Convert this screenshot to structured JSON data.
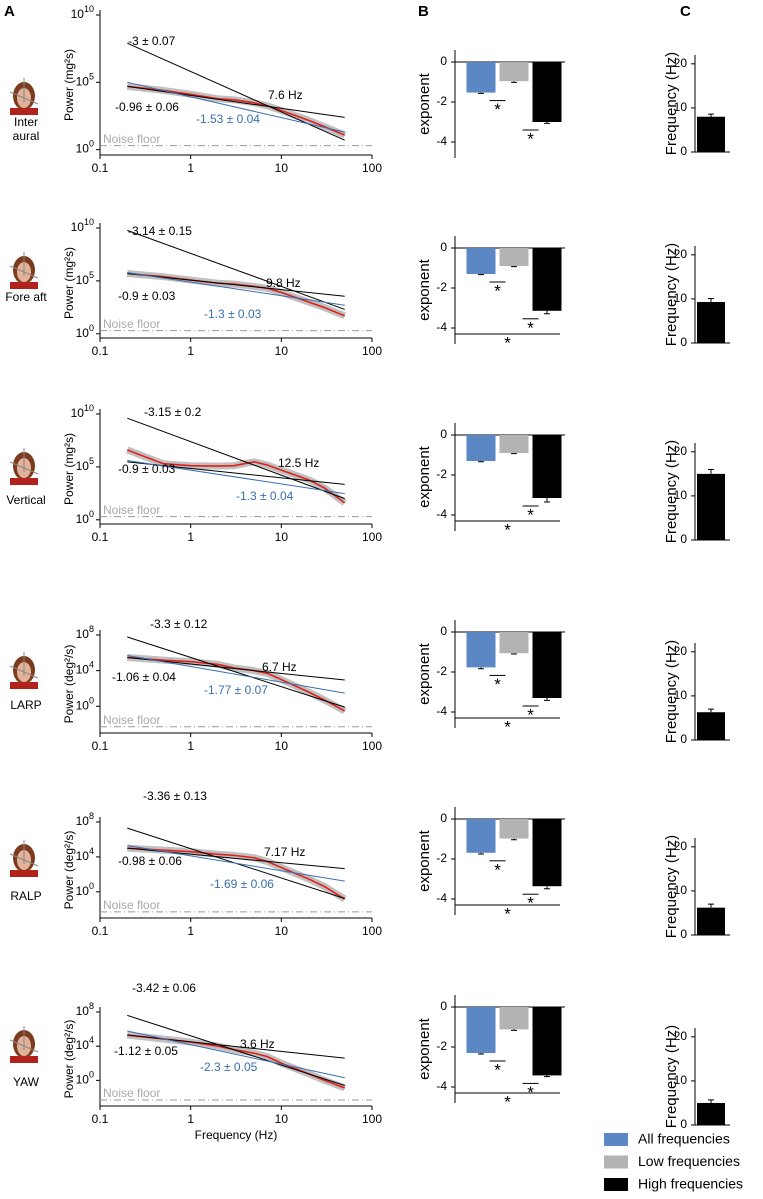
{
  "panels": [
    "A",
    "B",
    "C"
  ],
  "legend": [
    {
      "name": "All frequencies",
      "color": "#5b87c5"
    },
    {
      "name": "Low frequencies",
      "color": "#b3b3b3"
    },
    {
      "name": "High frequencies",
      "color": "#000000"
    }
  ],
  "chart_data": [
    {
      "type": "line",
      "label": "Inter aural",
      "ylabel": "Power (mg²s)",
      "log_x": true,
      "log_y": true,
      "xlim": [
        0.1,
        100
      ],
      "xticks": [
        0.1,
        1,
        10,
        100
      ],
      "ylim": [
        0.4,
        10000000000.0
      ],
      "yticks": [
        {
          "value": 1,
          "label": "10",
          "exponent": "0"
        },
        {
          "value": 100000.0,
          "label": "10",
          "exponent": "5"
        },
        {
          "value": 10000000000.0,
          "label": "10",
          "exponent": "10"
        }
      ],
      "noise_floor": {
        "label": "Noise floor",
        "value": 2
      },
      "series": [
        {
          "color": "#e0201b",
          "band_color": "#b5b5b5",
          "x": [
            0.2,
            0.5,
            1,
            2,
            3,
            5,
            7,
            10,
            20,
            30,
            50
          ],
          "values": [
            50000.0,
            25000.0,
            13000.0,
            6000.0,
            5000.0,
            3000.0,
            1800.0,
            800.0,
            150.0,
            50.0,
            12.0
          ]
        },
        {
          "color": "#000000",
          "x": [
            0.2,
            50
          ],
          "values": [
            50000.0,
            250.0
          ]
        },
        {
          "color": "#000000",
          "x": [
            0.2,
            50
          ],
          "values": [
            80000000.0,
            5
          ]
        },
        {
          "color": "#3a6fb0",
          "x": [
            0.2,
            50
          ],
          "values": [
            100000.0,
            20.0
          ]
        }
      ],
      "annotations": [
        {
          "text": "-3 ± 0.07",
          "color": "#000000"
        },
        {
          "text": "7.6 Hz",
          "color": "#000000"
        },
        {
          "text": "-0.96 ± 0.06",
          "color": "#000000"
        },
        {
          "text": "-1.53 ± 0.04",
          "color": "#3a6fb0"
        }
      ]
    },
    {
      "type": "bar",
      "ylabel": "exponent",
      "ylim": [
        -4.8,
        0.6
      ],
      "yticks": [
        0,
        -2,
        -4
      ],
      "values": [
        -1.53,
        -0.96,
        -3
      ],
      "errors": [
        0.04,
        0.06,
        0.07
      ],
      "significance": [
        {
          "bars": [
            0,
            1
          ],
          "label": "*"
        },
        {
          "bars": [
            1,
            2
          ],
          "label": "*"
        }
      ]
    },
    {
      "type": "bar",
      "ylabel": "Frequency (Hz)",
      "ylim": [
        0,
        22
      ],
      "yticks": [
        0,
        10,
        20
      ],
      "values": [
        8
      ],
      "errors": [
        0.6
      ],
      "color": "#000000"
    },
    {
      "type": "line",
      "label": "Fore aft",
      "ylabel": "Power (mg²s)",
      "log_x": true,
      "log_y": true,
      "xlim": [
        0.1,
        100
      ],
      "xticks": [
        0.1,
        1,
        10,
        100
      ],
      "ylim": [
        0.4,
        10000000000.0
      ],
      "yticks": [
        {
          "value": 1,
          "label": "10",
          "exponent": "0"
        },
        {
          "value": 100000.0,
          "label": "10",
          "exponent": "5"
        },
        {
          "value": 10000000000.0,
          "label": "10",
          "exponent": "10"
        }
      ],
      "noise_floor": {
        "label": "Noise floor",
        "value": 2
      },
      "series": [
        {
          "color": "#e0201b",
          "band_color": "#b5b5b5",
          "x": [
            0.2,
            0.5,
            1,
            2,
            3,
            5,
            7,
            10,
            20,
            30,
            50
          ],
          "values": [
            500000.0,
            250000.0,
            120000.0,
            60000.0,
            50000.0,
            30000.0,
            20000.0,
            8000.0,
            1000.0,
            300.0,
            50.0
          ]
        },
        {
          "color": "#000000",
          "x": [
            0.2,
            50
          ],
          "values": [
            500000.0,
            3500.0
          ]
        },
        {
          "color": "#000000",
          "x": [
            0.2,
            50
          ],
          "values": [
            6000000000.0,
            200.0
          ]
        },
        {
          "color": "#3a6fb0",
          "x": [
            0.2,
            50
          ],
          "values": [
            600000.0,
            500.0
          ]
        }
      ],
      "annotations": [
        {
          "text": "-3.14 ± 0.15",
          "color": "#000000"
        },
        {
          "text": "9.8 Hz",
          "color": "#000000"
        },
        {
          "text": "-0.9 ± 0.03",
          "color": "#000000"
        },
        {
          "text": "-1.3 ± 0.03",
          "color": "#3a6fb0"
        }
      ]
    },
    {
      "type": "bar",
      "ylabel": "exponent",
      "ylim": [
        -4.8,
        0.6
      ],
      "yticks": [
        0,
        -2,
        -4
      ],
      "values": [
        -1.3,
        -0.9,
        -3.14
      ],
      "errors": [
        0.03,
        0.03,
        0.15
      ],
      "significance": [
        {
          "bars": [
            0,
            1
          ],
          "label": "*"
        },
        {
          "bars": [
            1,
            2
          ],
          "label": "*"
        },
        {
          "bars": [
            0,
            2
          ],
          "label": "*"
        }
      ]
    },
    {
      "type": "bar",
      "ylabel": "Frequency (Hz)",
      "ylim": [
        0,
        22
      ],
      "yticks": [
        0,
        10,
        20
      ],
      "values": [
        9.3
      ],
      "errors": [
        0.8
      ],
      "color": "#000000"
    },
    {
      "type": "line",
      "label": "Vertical",
      "ylabel": "Power (mg²s)",
      "log_x": true,
      "log_y": true,
      "xlim": [
        0.1,
        100
      ],
      "xticks": [
        0.1,
        1,
        10,
        100
      ],
      "ylim": [
        0.4,
        10000000000.0
      ],
      "yticks": [
        {
          "value": 1,
          "label": "10",
          "exponent": "0"
        },
        {
          "value": 100000.0,
          "label": "10",
          "exponent": "5"
        },
        {
          "value": 10000000000.0,
          "label": "10",
          "exponent": "10"
        }
      ],
      "noise_floor": {
        "label": "Noise floor",
        "value": 2
      },
      "series": [
        {
          "color": "#e0201b",
          "band_color": "#b5b5b5",
          "x": [
            0.2,
            0.5,
            1,
            2,
            3,
            5,
            7,
            10,
            20,
            30,
            50
          ],
          "values": [
            4000000.0,
            200000.0,
            130000.0,
            120000.0,
            130000.0,
            300000.0,
            150000.0,
            50000.0,
            6000.0,
            1000.0,
            40.0
          ]
        },
        {
          "color": "#000000",
          "x": [
            0.2,
            50
          ],
          "values": [
            300000.0,
            2200.0
          ]
        },
        {
          "color": "#000000",
          "x": [
            0.2,
            50
          ],
          "values": [
            4000000000.0,
            100.0
          ]
        },
        {
          "color": "#3a6fb0",
          "x": [
            0.2,
            50
          ],
          "values": [
            400000.0,
            300.0
          ]
        }
      ],
      "annotations": [
        {
          "text": "-3.15 ± 0.2",
          "color": "#000000"
        },
        {
          "text": "12.5 Hz",
          "color": "#000000"
        },
        {
          "text": "-0.9 ± 0.03",
          "color": "#000000"
        },
        {
          "text": "-1.3 ± 0.04",
          "color": "#3a6fb0"
        }
      ]
    },
    {
      "type": "bar",
      "ylabel": "exponent",
      "ylim": [
        -4.8,
        0.6
      ],
      "yticks": [
        0,
        -2,
        -4
      ],
      "values": [
        -1.3,
        -0.9,
        -3.15
      ],
      "errors": [
        0.04,
        0.03,
        0.2
      ],
      "significance": [
        {
          "bars": [
            1,
            2
          ],
          "label": "*"
        },
        {
          "bars": [
            0,
            2
          ],
          "label": "*"
        }
      ]
    },
    {
      "type": "bar",
      "ylabel": "Frequency (Hz)",
      "ylim": [
        0,
        22
      ],
      "yticks": [
        0,
        10,
        20
      ],
      "values": [
        15
      ],
      "errors": [
        1
      ],
      "color": "#000000"
    },
    {
      "type": "line",
      "label": "LARP",
      "ylabel": "Power (deg²/s)",
      "log_x": true,
      "log_y": true,
      "xlim": [
        0.1,
        100
      ],
      "xticks": [
        0.1,
        1,
        10,
        100
      ],
      "ylim": [
        0.001,
        100000000.0
      ],
      "yticks": [
        {
          "value": 1,
          "label": "10",
          "exponent": "0"
        },
        {
          "value": 10000.0,
          "label": "10",
          "exponent": "4"
        },
        {
          "value": 100000000.0,
          "label": "10",
          "exponent": "8"
        }
      ],
      "noise_floor": {
        "label": "Noise floor",
        "value": 0.005
      },
      "series": [
        {
          "color": "#e0201b",
          "band_color": "#b5b5b5",
          "x": [
            0.2,
            0.5,
            1,
            2,
            3,
            5,
            7,
            10,
            20,
            30,
            50
          ],
          "values": [
            300000.0,
            150000.0,
            100000.0,
            50000.0,
            20000.0,
            10000.0,
            5000.0,
            1000.0,
            40.0,
            5,
            0.3
          ]
        },
        {
          "color": "#000000",
          "x": [
            0.2,
            50
          ],
          "values": [
            300000.0,
            900.0
          ]
        },
        {
          "color": "#000000",
          "x": [
            0.2,
            50
          ],
          "values": [
            60000000.0,
            0.8
          ]
        },
        {
          "color": "#3a6fb0",
          "x": [
            0.2,
            50
          ],
          "values": [
            500000.0,
            30.0
          ]
        }
      ],
      "annotations": [
        {
          "text": "-3.3 ± 0.12",
          "color": "#000000"
        },
        {
          "text": "6.7 Hz",
          "color": "#000000"
        },
        {
          "text": "-1.06 ± 0.04",
          "color": "#000000"
        },
        {
          "text": "-1.77 ± 0.07",
          "color": "#3a6fb0"
        }
      ]
    },
    {
      "type": "bar",
      "ylabel": "exponent",
      "ylim": [
        -4.8,
        0.6
      ],
      "yticks": [
        0,
        -2,
        -4
      ],
      "values": [
        -1.77,
        -1.06,
        -3.3
      ],
      "errors": [
        0.07,
        0.04,
        0.12
      ],
      "significance": [
        {
          "bars": [
            0,
            1
          ],
          "label": "*"
        },
        {
          "bars": [
            1,
            2
          ],
          "label": "*"
        },
        {
          "bars": [
            0,
            2
          ],
          "label": "*"
        }
      ]
    },
    {
      "type": "bar",
      "ylabel": "Frequency (Hz)",
      "ylim": [
        0,
        22
      ],
      "yticks": [
        0,
        10,
        20
      ],
      "values": [
        6.3
      ],
      "errors": [
        0.7
      ],
      "color": "#000000"
    },
    {
      "type": "line",
      "label": "RALP",
      "ylabel": "Power (deg²/s)",
      "log_x": true,
      "log_y": true,
      "xlim": [
        0.1,
        100
      ],
      "xticks": [
        0.1,
        1,
        10,
        100
      ],
      "ylim": [
        0.001,
        100000000.0
      ],
      "yticks": [
        {
          "value": 1,
          "label": "10",
          "exponent": "0"
        },
        {
          "value": 10000.0,
          "label": "10",
          "exponent": "4"
        },
        {
          "value": 100000000.0,
          "label": "10",
          "exponent": "8"
        }
      ],
      "noise_floor": {
        "label": "Noise floor",
        "value": 0.005
      },
      "series": [
        {
          "color": "#e0201b",
          "band_color": "#b5b5b5",
          "x": [
            0.2,
            0.5,
            1,
            2,
            3,
            5,
            7,
            10,
            20,
            30,
            50
          ],
          "values": [
            100000.0,
            60000.0,
            40000.0,
            20000.0,
            15000.0,
            8000.0,
            3000.0,
            600.0,
            30.0,
            4,
            0.15
          ]
        },
        {
          "color": "#000000",
          "x": [
            0.2,
            50
          ],
          "values": [
            100000.0,
            450.0
          ]
        },
        {
          "color": "#000000",
          "x": [
            0.2,
            50
          ],
          "values": [
            20000000.0,
            0.17
          ]
        },
        {
          "color": "#3a6fb0",
          "x": [
            0.2,
            50
          ],
          "values": [
            200000.0,
            17.0
          ]
        }
      ],
      "annotations": [
        {
          "text": "-3.36 ± 0.13",
          "color": "#000000"
        },
        {
          "text": "7.17 Hz",
          "color": "#000000"
        },
        {
          "text": "-0.98 ± 0.06",
          "color": "#000000"
        },
        {
          "text": "-1.69 ± 0.06",
          "color": "#3a6fb0"
        }
      ]
    },
    {
      "type": "bar",
      "ylabel": "exponent",
      "ylim": [
        -4.8,
        0.6
      ],
      "yticks": [
        0,
        -2,
        -4
      ],
      "values": [
        -1.69,
        -0.98,
        -3.36
      ],
      "errors": [
        0.06,
        0.06,
        0.13
      ],
      "significance": [
        {
          "bars": [
            0,
            1
          ],
          "label": "*"
        },
        {
          "bars": [
            1,
            2
          ],
          "label": "*"
        },
        {
          "bars": [
            0,
            2
          ],
          "label": "*"
        }
      ]
    },
    {
      "type": "bar",
      "ylabel": "Frequency (Hz)",
      "ylim": [
        0,
        22
      ],
      "yticks": [
        0,
        10,
        20
      ],
      "values": [
        6.2
      ],
      "errors": [
        0.8
      ],
      "color": "#000000"
    },
    {
      "type": "line",
      "label": "YAW",
      "ylabel": "Power (deg²/s)",
      "xlabel": "Frequency (Hz)",
      "log_x": true,
      "log_y": true,
      "xlim": [
        0.1,
        100
      ],
      "xticks": [
        0.1,
        1,
        10,
        100
      ],
      "ylim": [
        0.001,
        100000000.0
      ],
      "yticks": [
        {
          "value": 1,
          "label": "10",
          "exponent": "0"
        },
        {
          "value": 10000.0,
          "label": "10",
          "exponent": "4"
        },
        {
          "value": 100000000.0,
          "label": "10",
          "exponent": "8"
        }
      ],
      "noise_floor": {
        "label": "Noise floor",
        "value": 0.005
      },
      "series": [
        {
          "color": "#e0201b",
          "band_color": "#b5b5b5",
          "x": [
            0.2,
            0.5,
            1,
            2,
            3,
            5,
            7,
            10,
            20,
            30,
            50
          ],
          "values": [
            200000.0,
            70000.0,
            30000.0,
            10000.0,
            4000.0,
            1500.0,
            600.0,
            100.0,
            6,
            1,
            0.13
          ]
        },
        {
          "color": "#000000",
          "x": [
            0.2,
            50
          ],
          "values": [
            200000.0,
            400.0
          ]
        },
        {
          "color": "#000000",
          "x": [
            0.2,
            50
          ],
          "values": [
            40000000.0,
            0.25
          ]
        },
        {
          "color": "#3a6fb0",
          "x": [
            0.2,
            50
          ],
          "values": [
            600000.0,
            2
          ]
        }
      ],
      "annotations": [
        {
          "text": "-3.42 ± 0.06",
          "color": "#000000"
        },
        {
          "text": "3.6 Hz",
          "color": "#000000"
        },
        {
          "text": "-1.12 ± 0.05",
          "color": "#000000"
        },
        {
          "text": "-2.3 ± 0.05",
          "color": "#3a6fb0"
        }
      ]
    },
    {
      "type": "bar",
      "ylabel": "exponent",
      "ylim": [
        -4.8,
        0.6
      ],
      "yticks": [
        0,
        -2,
        -4
      ],
      "values": [
        -2.3,
        -1.12,
        -3.42
      ],
      "errors": [
        0.05,
        0.05,
        0.06
      ],
      "significance": [
        {
          "bars": [
            0,
            1
          ],
          "label": "*"
        },
        {
          "bars": [
            1,
            2
          ],
          "label": "*"
        },
        {
          "bars": [
            0,
            2
          ],
          "label": "*"
        }
      ]
    },
    {
      "type": "bar",
      "ylabel": "Frequency (Hz)",
      "ylim": [
        0,
        22
      ],
      "yticks": [
        0,
        10,
        20
      ],
      "values": [
        5
      ],
      "errors": [
        0.7
      ],
      "color": "#000000"
    }
  ]
}
